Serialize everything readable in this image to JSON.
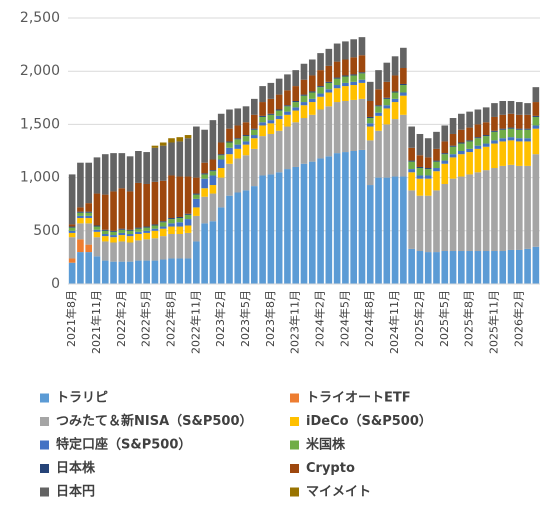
{
  "chart_data": {
    "type": "stacked_bar",
    "categories": [
      "2021年8月",
      null,
      null,
      "2021年11月",
      null,
      null,
      "2022年2月",
      null,
      null,
      "2022年5月",
      null,
      null,
      "2022年8月",
      null,
      null,
      "2022年11月",
      null,
      null,
      "2023年2月",
      null,
      null,
      "2023年5月",
      null,
      null,
      "2023年8月",
      null,
      null,
      "2023年11月",
      null,
      null,
      "2024年2月",
      null,
      null,
      "2024年5月",
      null,
      null,
      "2024年8月",
      null,
      null,
      "2024年11月",
      null,
      null,
      "2025年2月",
      null,
      null,
      "2025年5月",
      null,
      null,
      "2025年8月",
      null,
      null,
      "2025年11月",
      null,
      null,
      "2026年2月",
      null,
      null
    ],
    "ylim": [
      0,
      2500
    ],
    "yticks": [
      0,
      500,
      {
        "value": 1000,
        "label": "1,000"
      },
      {
        "value": 1500,
        "label": "1,500"
      },
      {
        "value": 2000,
        "label": "2,000"
      },
      {
        "value": 2500,
        "label": "2,500"
      }
    ],
    "grid": true,
    "series": [
      {
        "name": "トラリピ",
        "color": "#5b9bd5",
        "values": [
          200,
          300,
          300,
          260,
          220,
          210,
          210,
          210,
          220,
          220,
          220,
          230,
          240,
          240,
          240,
          400,
          570,
          590,
          720,
          830,
          860,
          880,
          920,
          1020,
          1030,
          1050,
          1080,
          1100,
          1130,
          1150,
          1180,
          1200,
          1230,
          1240,
          1250,
          1260,
          930,
          1000,
          1000,
          1010,
          1010,
          330,
          310,
          300,
          300,
          310,
          310,
          310,
          310,
          310,
          310,
          310,
          310,
          320,
          320,
          330,
          350
        ]
      },
      {
        "name": "トライオートETF",
        "color": "#ed7d31",
        "values": [
          40,
          120,
          70,
          0,
          0,
          0,
          0,
          0,
          0,
          0,
          0,
          0,
          0,
          0,
          0,
          0,
          0,
          0,
          0,
          0,
          0,
          0,
          0,
          0,
          0,
          0,
          0,
          0,
          0,
          0,
          0,
          0,
          0,
          0,
          0,
          0,
          0,
          0,
          0,
          0,
          0,
          0,
          0,
          0,
          0,
          0,
          0,
          0,
          0,
          0,
          0,
          0,
          0,
          0,
          0,
          0,
          0
        ]
      },
      {
        "name": "つみたて＆新NISA（S&P500）",
        "color": "#a5a5a5",
        "values": [
          200,
          150,
          200,
          180,
          180,
          180,
          190,
          180,
          190,
          200,
          210,
          220,
          230,
          230,
          240,
          240,
          250,
          260,
          280,
          300,
          320,
          330,
          350,
          370,
          380,
          390,
          400,
          420,
          430,
          440,
          460,
          470,
          480,
          480,
          480,
          480,
          420,
          440,
          500,
          540,
          580,
          550,
          520,
          530,
          580,
          630,
          680,
          700,
          720,
          740,
          760,
          780,
          800,
          800,
          790,
          780,
          870
        ]
      },
      {
        "name": "iDeCo（S&P500）",
        "color": "#ffc000",
        "values": [
          40,
          50,
          50,
          50,
          50,
          50,
          60,
          60,
          60,
          60,
          70,
          70,
          70,
          70,
          70,
          80,
          80,
          80,
          90,
          90,
          90,
          100,
          100,
          100,
          100,
          110,
          110,
          110,
          120,
          120,
          120,
          130,
          130,
          140,
          140,
          150,
          130,
          140,
          150,
          160,
          180,
          170,
          160,
          160,
          180,
          190,
          200,
          210,
          210,
          220,
          220,
          230,
          230,
          230,
          230,
          230,
          240
        ]
      },
      {
        "name": "特定口座（S&P500）",
        "color": "#4472c4",
        "values": [
          20,
          20,
          20,
          20,
          20,
          20,
          20,
          20,
          20,
          20,
          20,
          20,
          30,
          40,
          60,
          80,
          90,
          90,
          80,
          60,
          40,
          30,
          30,
          30,
          30,
          30,
          30,
          30,
          30,
          30,
          30,
          30,
          30,
          30,
          30,
          30,
          30,
          30,
          30,
          30,
          30,
          30,
          30,
          30,
          30,
          30,
          30,
          30,
          30,
          30,
          30,
          30,
          30,
          30,
          30,
          30,
          30
        ]
      },
      {
        "name": "米国株",
        "color": "#70ad47",
        "values": [
          30,
          30,
          30,
          30,
          30,
          30,
          30,
          30,
          30,
          30,
          30,
          40,
          40,
          40,
          40,
          40,
          40,
          40,
          40,
          50,
          50,
          50,
          50,
          50,
          50,
          50,
          50,
          50,
          60,
          60,
          60,
          60,
          60,
          60,
          60,
          60,
          50,
          60,
          60,
          60,
          70,
          70,
          70,
          60,
          60,
          60,
          70,
          70,
          70,
          70,
          70,
          80,
          80,
          80,
          80,
          80,
          80
        ]
      },
      {
        "name": "日本株",
        "color": "#264478",
        "values": [
          10,
          10,
          10,
          10,
          10,
          10,
          10,
          10,
          10,
          10,
          10,
          10,
          10,
          10,
          10,
          10,
          10,
          10,
          10,
          10,
          10,
          10,
          10,
          10,
          10,
          10,
          10,
          10,
          10,
          10,
          10,
          10,
          10,
          10,
          10,
          10,
          10,
          10,
          10,
          10,
          10,
          10,
          10,
          10,
          10,
          10,
          10,
          10,
          10,
          10,
          10,
          10,
          10,
          10,
          10,
          10,
          10
        ]
      },
      {
        "name": "Crypto",
        "color": "#9e480e",
        "values": [
          20,
          40,
          80,
          300,
          330,
          370,
          380,
          360,
          420,
          400,
          400,
          380,
          400,
          380,
          350,
          150,
          100,
          100,
          110,
          120,
          120,
          120,
          130,
          130,
          140,
          140,
          140,
          140,
          140,
          150,
          150,
          150,
          150,
          150,
          160,
          160,
          150,
          150,
          150,
          150,
          150,
          120,
          110,
          100,
          110,
          110,
          110,
          120,
          120,
          120,
          120,
          130,
          130,
          130,
          130,
          130,
          130
        ]
      },
      {
        "name": "日本円",
        "color": "#636363",
        "values": [
          470,
          420,
          380,
          340,
          380,
          360,
          330,
          330,
          300,
          300,
          320,
          330,
          310,
          330,
          360,
          480,
          310,
          370,
          270,
          180,
          160,
          150,
          150,
          150,
          150,
          150,
          150,
          150,
          150,
          150,
          160,
          160,
          170,
          170,
          170,
          170,
          180,
          180,
          180,
          180,
          190,
          200,
          200,
          180,
          160,
          150,
          150,
          150,
          150,
          140,
          140,
          130,
          130,
          120,
          120,
          110,
          140
        ]
      },
      {
        "name": "マイメイト",
        "color": "#997300",
        "values": [
          0,
          0,
          0,
          0,
          0,
          0,
          0,
          0,
          0,
          0,
          20,
          30,
          40,
          40,
          30,
          0,
          0,
          0,
          0,
          0,
          0,
          0,
          0,
          0,
          0,
          0,
          0,
          0,
          0,
          0,
          0,
          0,
          0,
          0,
          0,
          0,
          0,
          0,
          0,
          0,
          0,
          0,
          0,
          0,
          0,
          0,
          0,
          0,
          0,
          0,
          0,
          0,
          0,
          0,
          0,
          0,
          0
        ]
      }
    ]
  }
}
